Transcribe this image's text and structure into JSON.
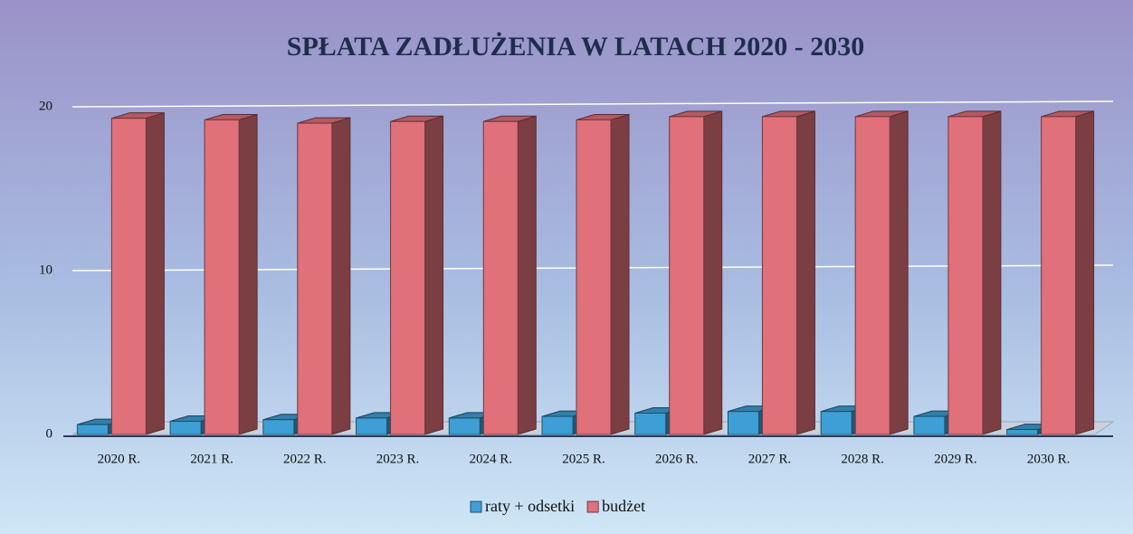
{
  "chart_data": {
    "type": "bar3d",
    "title": "SPŁATA ZADŁUŻENIA W LATACH 2020 - 2030",
    "categories": [
      "2020 R.",
      "2021 R.",
      "2022 R.",
      "2023 R.",
      "2024 R.",
      "2025 R.",
      "2026 R.",
      "2027 R.",
      "2028 R.",
      "2029 R.",
      "2030 R."
    ],
    "series": [
      {
        "name": "raty + odsetki",
        "color": "#3d9fd6",
        "values": [
          0.6,
          0.8,
          0.9,
          1.0,
          1.0,
          1.1,
          1.3,
          1.4,
          1.4,
          1.1,
          0.3
        ]
      },
      {
        "name": "budżet",
        "color": "#e0707a",
        "values": [
          19.3,
          19.2,
          19.0,
          19.1,
          19.1,
          19.2,
          19.4,
          19.4,
          19.4,
          19.4,
          19.4
        ]
      }
    ],
    "ylim": [
      0,
      20
    ],
    "yticks": [
      0,
      10,
      20
    ],
    "grid": true,
    "legend": "bottom"
  }
}
